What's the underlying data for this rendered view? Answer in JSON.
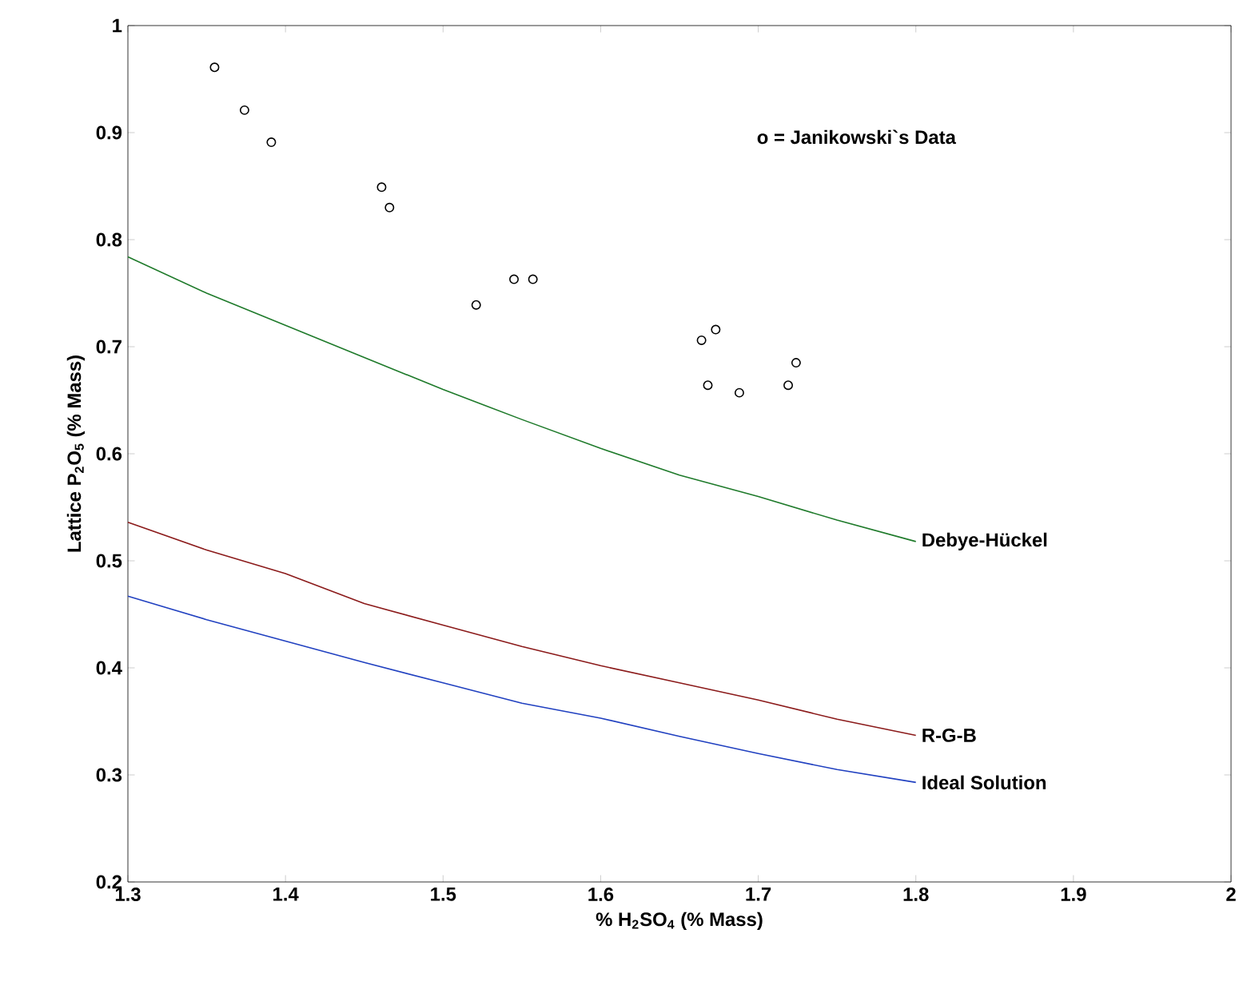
{
  "chart_data": {
    "type": "scatter",
    "xlabel": "% H$_{2}$SO$_{4}$ (% Mass)",
    "ylabel": "Lattice P$_{2}$O$_{5}$ (% Mass)",
    "xlim": [
      1.3,
      2
    ],
    "ylim": [
      0.2,
      1
    ],
    "xticks": [
      1.3,
      1.4,
      1.5,
      1.6,
      1.7,
      1.8,
      1.9,
      2
    ],
    "yticks": [
      0.2,
      0.3,
      0.4,
      0.5,
      0.6,
      0.7,
      0.8,
      0.9,
      1
    ],
    "annotations": [
      "o = Janikowski`s Data"
    ],
    "series": [
      {
        "marker": "circle",
        "color": "#000000",
        "x": [
          1.355,
          1.374,
          1.391,
          1.461,
          1.466,
          1.521,
          1.545,
          1.557,
          1.664,
          1.673,
          1.668,
          1.688,
          1.719,
          1.724
        ],
        "values": [
          0.961,
          0.921,
          0.891,
          0.849,
          0.83,
          0.739,
          0.763,
          0.763,
          0.706,
          0.716,
          0.664,
          0.657,
          0.664,
          0.685
        ]
      },
      {
        "type": "line",
        "name": "Debye-Hückel",
        "color": "#1e7a2a",
        "x": [
          1.3,
          1.35,
          1.4,
          1.45,
          1.5,
          1.55,
          1.6,
          1.65,
          1.7,
          1.75,
          1.8
        ],
        "values": [
          0.784,
          0.75,
          0.72,
          0.69,
          0.66,
          0.632,
          0.605,
          0.58,
          0.56,
          0.538,
          0.518
        ]
      },
      {
        "type": "line",
        "name": "R-G-B",
        "color": "#8b1a1a",
        "x": [
          1.3,
          1.35,
          1.4,
          1.45,
          1.5,
          1.55,
          1.6,
          1.65,
          1.7,
          1.75,
          1.8
        ],
        "values": [
          0.536,
          0.51,
          0.488,
          0.46,
          0.44,
          0.42,
          0.402,
          0.386,
          0.37,
          0.352,
          0.337
        ]
      },
      {
        "type": "line",
        "name": "Ideal Solution",
        "color": "#2040c0",
        "x": [
          1.3,
          1.35,
          1.4,
          1.45,
          1.5,
          1.55,
          1.6,
          1.65,
          1.7,
          1.75,
          1.8
        ],
        "values": [
          0.467,
          0.445,
          0.425,
          0.405,
          0.386,
          0.367,
          0.353,
          0.336,
          0.32,
          0.305,
          0.293
        ]
      }
    ]
  }
}
